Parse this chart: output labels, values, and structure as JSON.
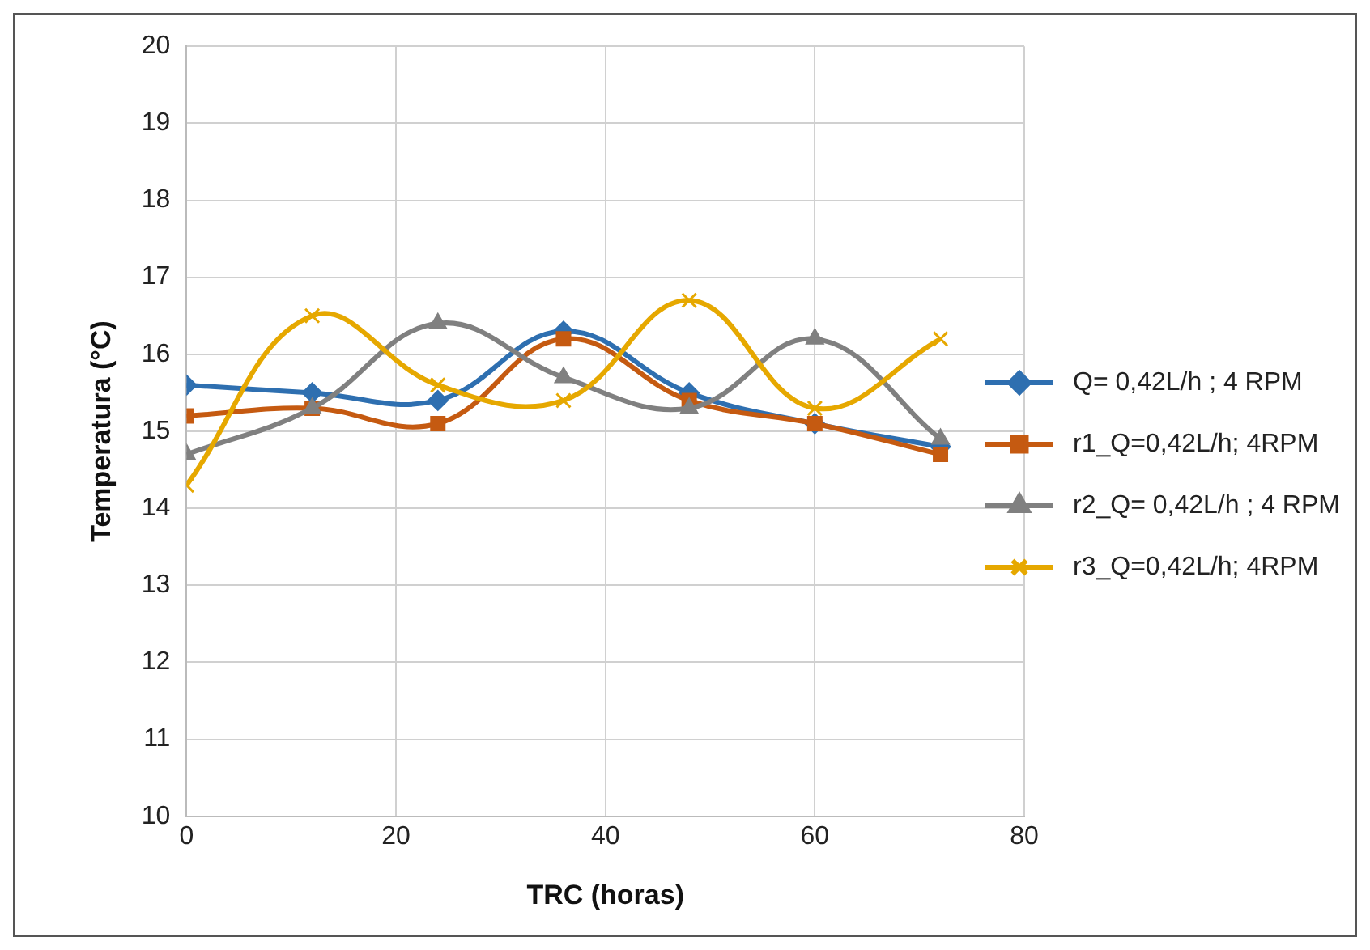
{
  "chart_data": {
    "type": "line",
    "xlabel": "TRC (horas)",
    "ylabel": "Temperatura (°C)",
    "x": [
      0,
      12,
      24,
      36,
      48,
      60,
      72
    ],
    "xlim": [
      0,
      80
    ],
    "xticks": [
      0,
      20,
      40,
      60,
      80
    ],
    "ylim": [
      10,
      20
    ],
    "yticks": [
      10,
      11,
      12,
      13,
      14,
      15,
      16,
      17,
      18,
      19,
      20
    ],
    "grid": true,
    "legend": "right",
    "series": [
      {
        "name": "Q= 0,42L/h ; 4 RPM",
        "color": "#2e6fb0",
        "marker": "diamond",
        "values": [
          15.6,
          15.5,
          15.4,
          16.3,
          15.5,
          15.1,
          14.8
        ]
      },
      {
        "name": "r1_Q=0,42L/h; 4RPM",
        "color": "#c55a11",
        "marker": "square",
        "values": [
          15.2,
          15.3,
          15.1,
          16.2,
          15.4,
          15.1,
          14.7
        ]
      },
      {
        "name": "r2_Q= 0,42L/h ; 4 RPM",
        "color": "#808080",
        "marker": "triangle",
        "values": [
          14.7,
          15.3,
          16.4,
          15.7,
          15.3,
          16.2,
          14.9
        ]
      },
      {
        "name": "r3_Q=0,42L/h; 4RPM",
        "color": "#e6a800",
        "marker": "cross",
        "values": [
          14.3,
          16.5,
          15.6,
          15.4,
          16.7,
          15.3,
          16.2
        ]
      }
    ]
  }
}
